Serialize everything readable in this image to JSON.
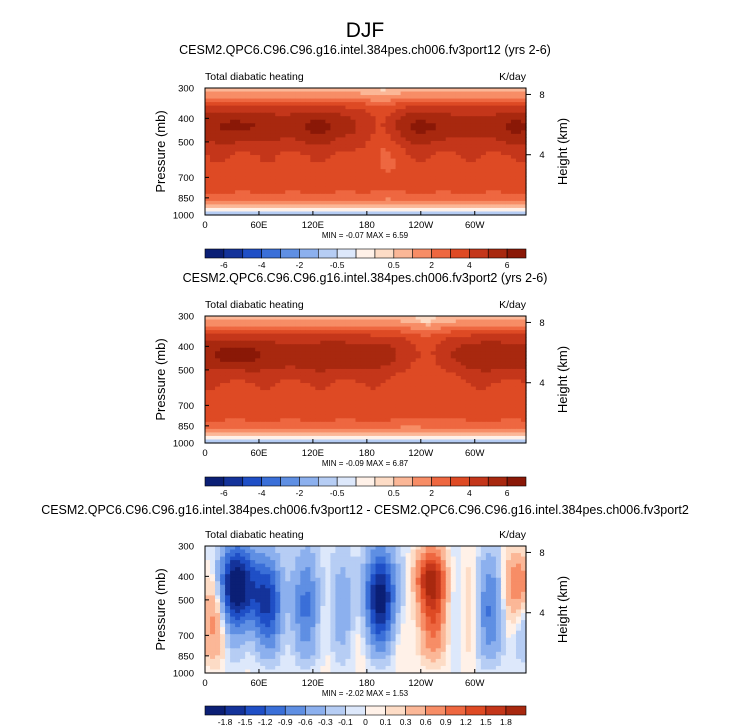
{
  "figure_title": "DJF",
  "colors": {
    "pos": [
      "#fff1e8",
      "#fddcc6",
      "#fbb797",
      "#f78d66",
      "#ee6740",
      "#de4a24",
      "#c4361a",
      "#a8280f",
      "#8a1807"
    ],
    "neg": [
      "#dde8fb",
      "#b6cdf4",
      "#8cb0ee",
      "#5f8fe3",
      "#3a6fd8",
      "#1f4fc6",
      "#14339a",
      "#0b1f75",
      "#05115a"
    ]
  },
  "chart_data": [
    {
      "type": "heatmap",
      "title": "CESM2.QPC6.C96.C96.g16.intel.384pes.ch006.fv3port12 (yrs 2-6)",
      "left_label": "Total diabatic heating",
      "units": "K/day",
      "ylabel": "Pressure (mb)",
      "ylabel_right": "Height (km)",
      "x_ticks": [
        "0",
        "60E",
        "120E",
        "180",
        "120W",
        "60W"
      ],
      "x_tick_values": [
        0,
        60,
        120,
        180,
        240,
        300
      ],
      "xlim": [
        0,
        357
      ],
      "y_ticks": [
        "300",
        "400",
        "500",
        "700",
        "850",
        "1000"
      ],
      "y_tick_values": [
        300,
        400,
        500,
        700,
        850,
        1000
      ],
      "ylim": [
        300,
        1000
      ],
      "right_ticks": [
        "8",
        "4"
      ],
      "right_tick_values": [
        8,
        4
      ],
      "stats": "MIN =  -0.07  MAX =  6.59",
      "colorbar_levels": [
        -6,
        -5,
        -4,
        -3,
        -2,
        -1,
        -0.5,
        -0.25,
        0.25,
        0.5,
        1,
        2,
        3,
        4,
        5,
        6
      ],
      "colorbar_labels": [
        "-6",
        "-4",
        "-2",
        "-0.5",
        "0.5",
        "2",
        "4",
        "6"
      ],
      "field_id": "A"
    },
    {
      "type": "heatmap",
      "title": "CESM2.QPC6.C96.C96.g16.intel.384pes.ch006.fv3port2 (yrs 2-6)",
      "left_label": "Total diabatic heating",
      "units": "K/day",
      "ylabel": "Pressure (mb)",
      "ylabel_right": "Height (km)",
      "x_ticks": [
        "0",
        "60E",
        "120E",
        "180",
        "120W",
        "60W"
      ],
      "x_tick_values": [
        0,
        60,
        120,
        180,
        240,
        300
      ],
      "xlim": [
        0,
        357
      ],
      "y_ticks": [
        "300",
        "400",
        "500",
        "700",
        "850",
        "1000"
      ],
      "y_tick_values": [
        300,
        400,
        500,
        700,
        850,
        1000
      ],
      "ylim": [
        300,
        1000
      ],
      "right_ticks": [
        "8",
        "4"
      ],
      "right_tick_values": [
        8,
        4
      ],
      "stats": "MIN =  -0.09  MAX =  6.87",
      "colorbar_levels": [
        -6,
        -5,
        -4,
        -3,
        -2,
        -1,
        -0.5,
        -0.25,
        0.25,
        0.5,
        1,
        2,
        3,
        4,
        5,
        6
      ],
      "colorbar_labels": [
        "-6",
        "-4",
        "-2",
        "-0.5",
        "0.5",
        "2",
        "4",
        "6"
      ],
      "field_id": "B"
    },
    {
      "type": "heatmap",
      "title": "CESM2.QPC6.C96.C96.g16.intel.384pes.ch006.fv3port12 - CESM2.QPC6.C96.C96.g16.intel.384pes.ch006.fv3port2",
      "left_label": "Total diabatic heating",
      "units": "K/day",
      "ylabel": "Pressure (mb)",
      "ylabel_right": "Height (km)",
      "x_ticks": [
        "0",
        "60E",
        "120E",
        "180",
        "120W",
        "60W"
      ],
      "x_tick_values": [
        0,
        60,
        120,
        180,
        240,
        300
      ],
      "xlim": [
        0,
        357
      ],
      "y_ticks": [
        "300",
        "400",
        "500",
        "700",
        "850",
        "1000"
      ],
      "y_tick_values": [
        300,
        400,
        500,
        700,
        850,
        1000
      ],
      "ylim": [
        300,
        1000
      ],
      "right_ticks": [
        "8",
        "4"
      ],
      "right_tick_values": [
        8,
        4
      ],
      "stats": "MIN =  -2.02  MAX =  1.53",
      "colorbar_levels": [
        -1.8,
        -1.5,
        -1.2,
        -0.9,
        -0.6,
        -0.3,
        -0.1,
        0,
        0.1,
        0.3,
        0.6,
        0.9,
        1.2,
        1.5,
        1.8
      ],
      "colorbar_labels": [
        "-1.8",
        "-1.5",
        "-1.2",
        "-0.9",
        "-0.6",
        "-0.3",
        "-0.1",
        "0",
        "0.1",
        "0.3",
        "0.6",
        "0.9",
        "1.2",
        "1.5",
        "1.8"
      ],
      "field_id": "D"
    }
  ]
}
